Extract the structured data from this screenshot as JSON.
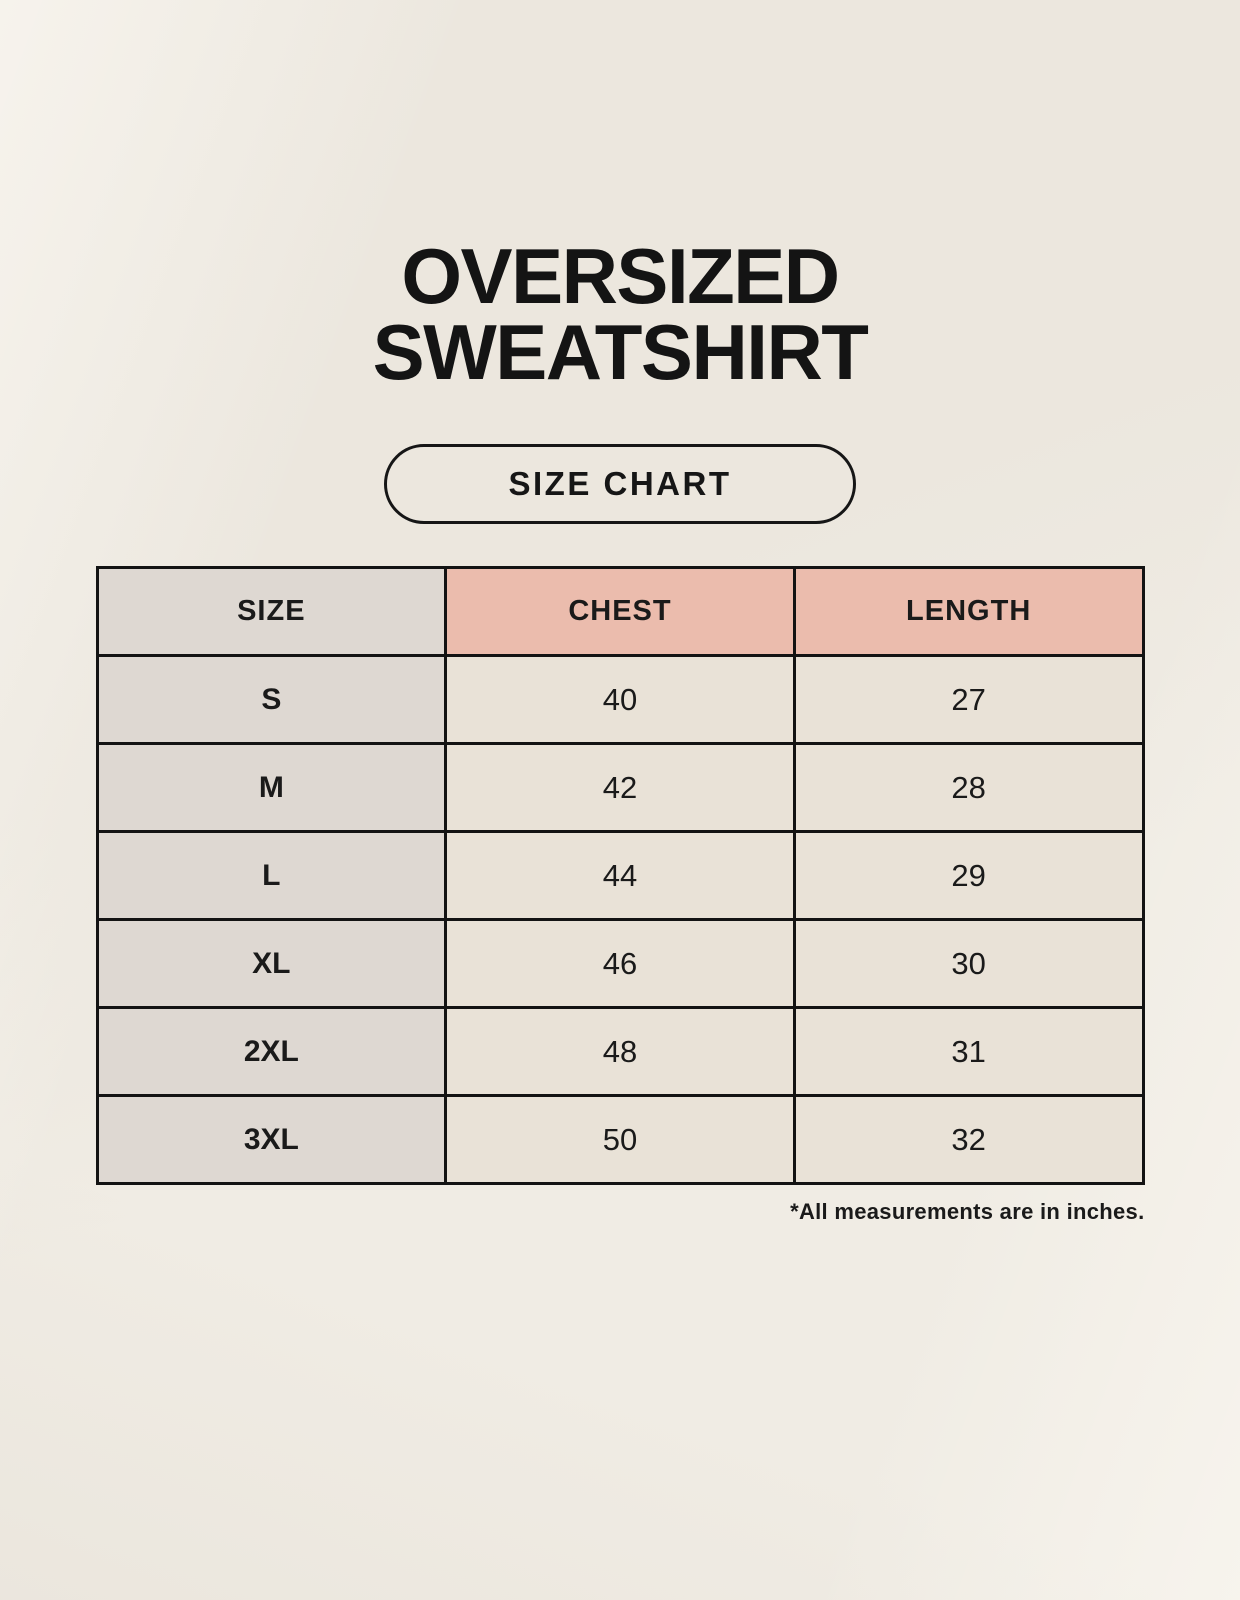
{
  "header": {
    "title_line1": "OVERSIZED",
    "title_line2": "SWEATSHIRT",
    "badge_label": "SIZE CHART"
  },
  "footnote": "*All measurements are in inches.",
  "colors": {
    "background": "#F0ECE4",
    "cell_gray": "#DED8D2",
    "cell_pink": "#EBBCAD",
    "cell_cream": "#E9E2D7",
    "border": "#131313",
    "text": "#1A1A1A"
  },
  "chart_data": {
    "type": "table",
    "title": "OVERSIZED SWEATSHIRT",
    "subtitle": "SIZE CHART",
    "columns": [
      "SIZE",
      "CHEST",
      "LENGTH"
    ],
    "rows": [
      [
        "S",
        40,
        27
      ],
      [
        "M",
        42,
        28
      ],
      [
        "L",
        44,
        29
      ],
      [
        "XL",
        46,
        30
      ],
      [
        "2XL",
        48,
        31
      ],
      [
        "3XL",
        50,
        32
      ]
    ],
    "units": "inches",
    "footnote": "*All measurements are in inches."
  }
}
